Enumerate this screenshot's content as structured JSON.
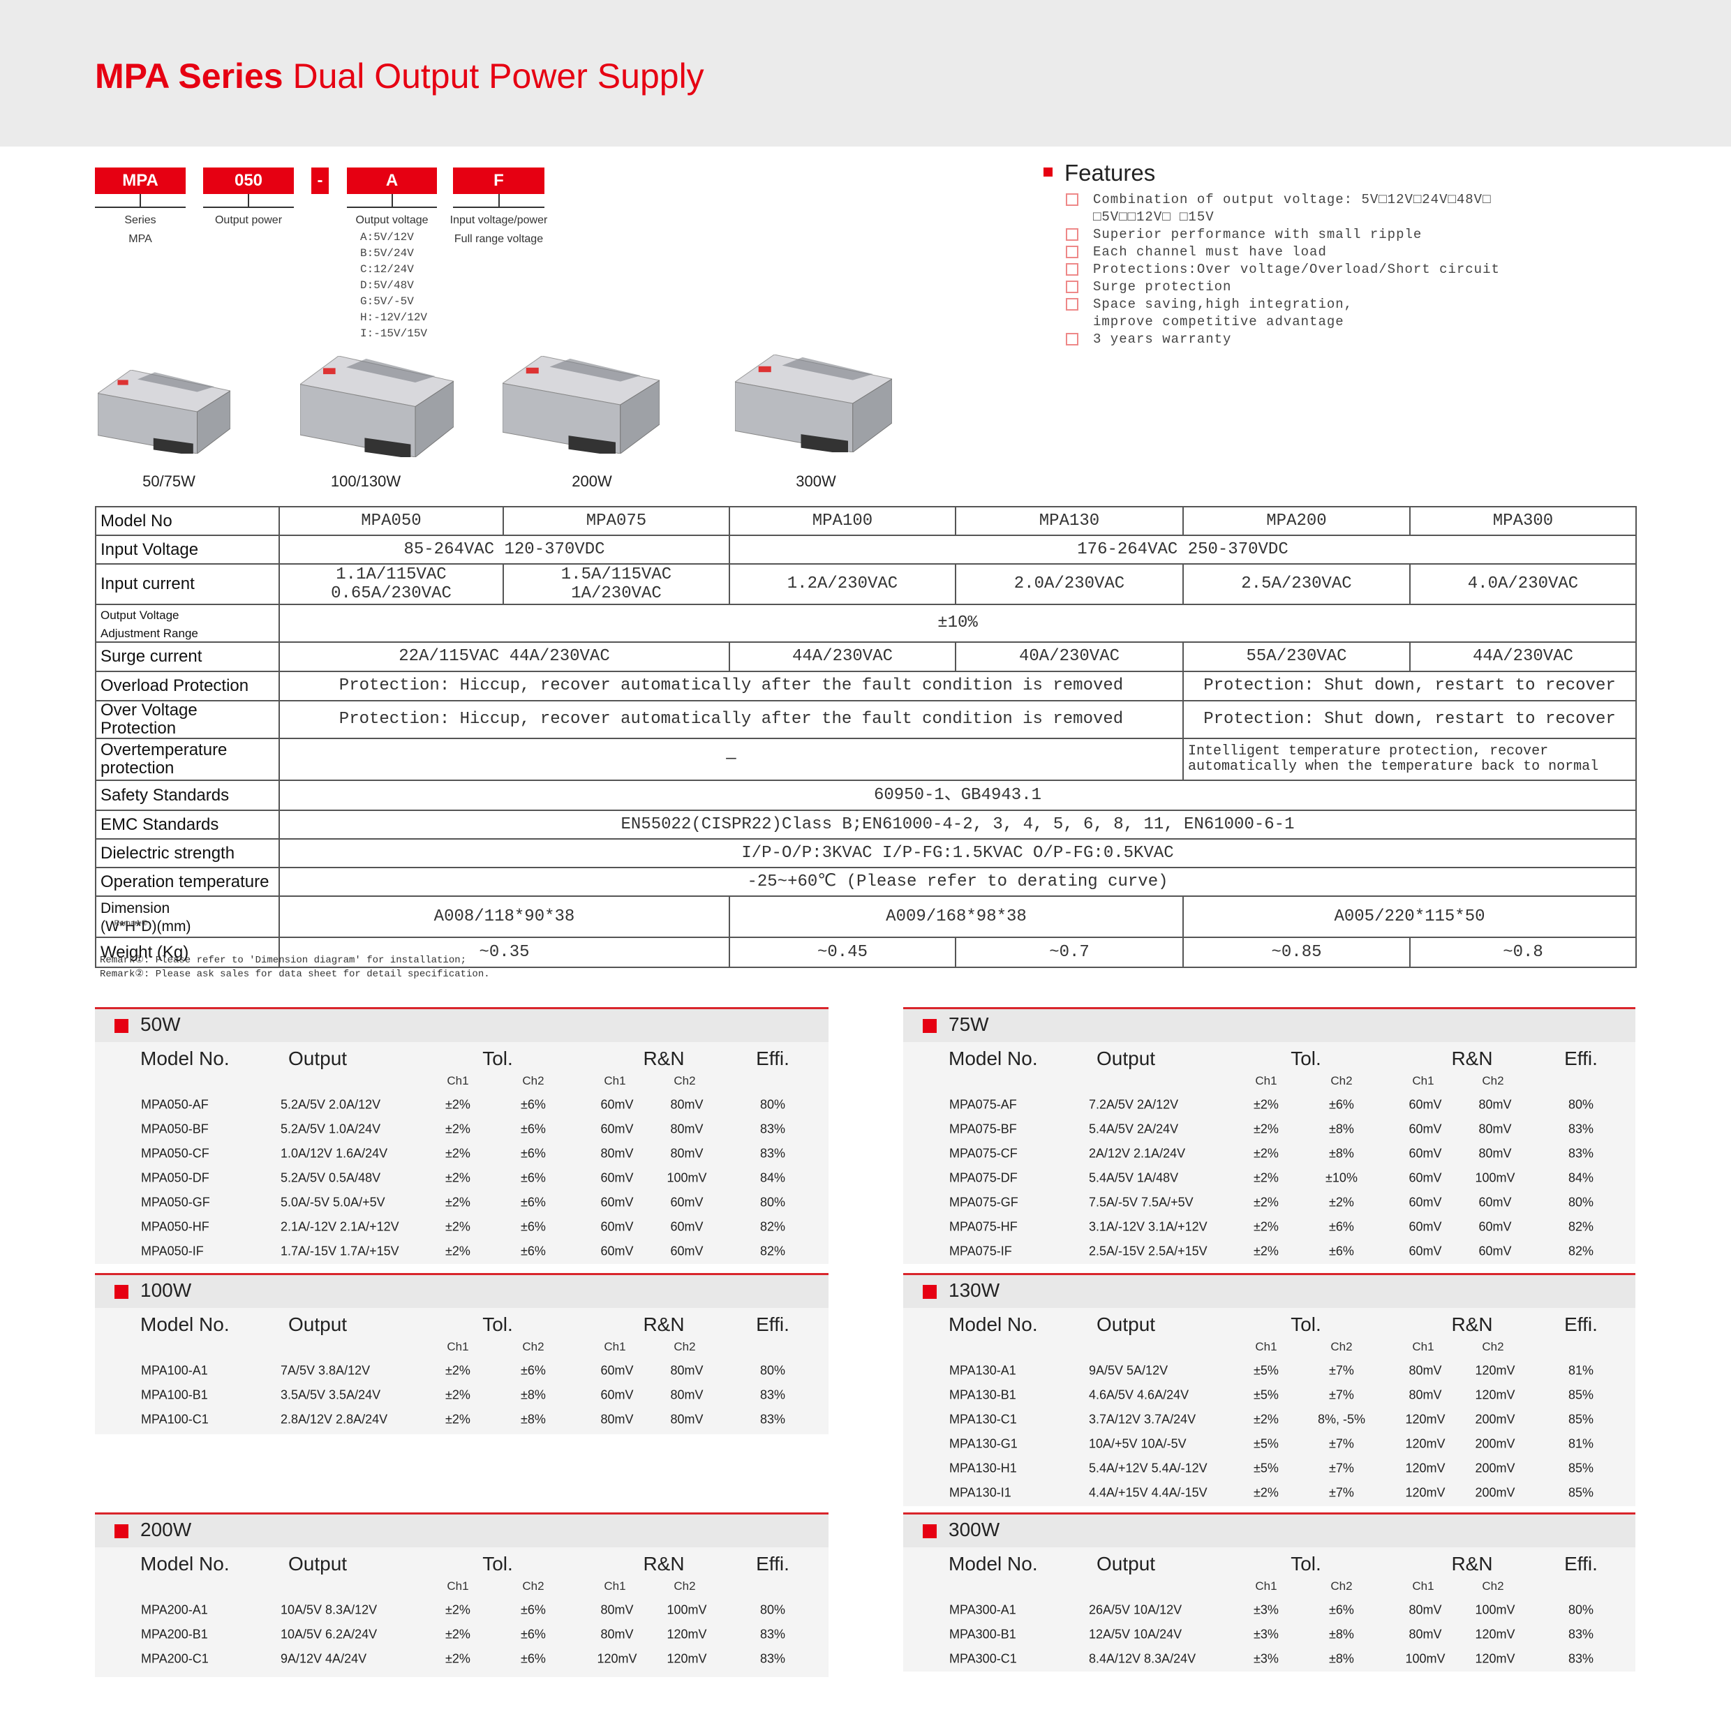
{
  "header": {
    "title_bold": "MPA Series",
    "title_rest": "Dual Output Power Supply"
  },
  "model_code": {
    "parts": [
      {
        "code": "MPA",
        "label": "Series\nMPA"
      },
      {
        "code": "050",
        "label": "Output power"
      },
      {
        "code": "-"
      },
      {
        "code": "A",
        "label": "Output voltage",
        "options": [
          "A:5V/12V",
          "B:5V/24V",
          "C:12/24V",
          "D:5V/48V",
          "G:5V/-5V",
          "H:-12V/12V",
          "I:-15V/15V"
        ]
      },
      {
        "code": "F",
        "label": "Input voltage/power\nFull range voltage"
      }
    ]
  },
  "features": {
    "title": "Features",
    "items": [
      "Combination of output voltage: 5V□12V□24V□48V□\n□5V□□12V□ □15V",
      "Superior performance with small ripple",
      "Each channel must have load",
      "Protections:Over voltage/Overload/Short circuit",
      "Surge protection",
      "Space saving,high integration,\nimprove competitive advantage",
      "3 years warranty"
    ]
  },
  "products": [
    "50/75W",
    "100/130W",
    "200W",
    "300W"
  ],
  "spec_table": {
    "rows": [
      {
        "label": "Model No",
        "cells": [
          "MPA050",
          "MPA075",
          "MPA100",
          "MPA130",
          "MPA200",
          "MPA300"
        ]
      },
      {
        "label": "Input Voltage",
        "cells": [
          "85-264VAC 120-370VDC",
          "176-264VAC 250-370VDC"
        ]
      },
      {
        "label": "Input current",
        "cells": [
          "1.1A/115VAC\n0.65A/230VAC",
          "1.5A/115VAC\n1A/230VAC",
          "1.2A/230VAC",
          "2.0A/230VAC",
          "2.5A/230VAC",
          "4.0A/230VAC"
        ]
      },
      {
        "label": "Output Voltage\nAdjustment Range",
        "cells": [
          "±10%"
        ]
      },
      {
        "label": "Surge current",
        "cells": [
          "22A/115VAC 44A/230VAC",
          "44A/230VAC",
          "40A/230VAC",
          "55A/230VAC",
          "44A/230VAC"
        ]
      },
      {
        "label": "Overload Protection",
        "cells": [
          "Protection: Hiccup, recover automatically after the fault condition is removed",
          "Protection: Shut down, restart to recover"
        ]
      },
      {
        "label": "Over Voltage Protection",
        "cells": [
          "Protection: Hiccup, recover automatically after the fault condition is removed",
          "Protection: Shut down, restart to recover"
        ]
      },
      {
        "label": "Overtemperature protection",
        "cells": [
          "—",
          "Intelligent temperature protection, recover\nautomatically when the temperature back to normal"
        ]
      },
      {
        "label": "Safety Standards",
        "cells": [
          "60950-1、GB4943.1"
        ]
      },
      {
        "label": "EMC Standards",
        "cells": [
          "EN55022(CISPR22)Class B;EN61000-4-2, 3, 4, 5, 6, 8, 11, EN61000-6-1"
        ]
      },
      {
        "label": "Dielectric strength",
        "cells": [
          "I/P-O/P:3KVAC I/P-FG:1.5KVAC O/P-FG:0.5KVAC"
        ]
      },
      {
        "label": "Operation temperature",
        "cells": [
          "-25~+60℃ (Please refer to derating curve)"
        ]
      },
      {
        "label": "Dimension\n(W*H*D)(mm)",
        "remark": "Remark①",
        "cells": [
          "A008/118*90*38",
          "A009/168*98*38",
          "A005/220*115*50"
        ]
      },
      {
        "label": "Weight (Kg)",
        "cells": [
          "~0.35",
          "~0.45",
          "~0.7",
          "~0.85",
          "~0.8"
        ]
      }
    ]
  },
  "remarks": [
    "Remark①: Please refer to 'Dimension diagram' for installation;",
    "Remark②: Please ask sales for data sheet for detail specification."
  ],
  "column_headers": {
    "model": "Model No.",
    "output": "Output",
    "tol": "Tol.",
    "rn": "R&N",
    "effi": "Effi.",
    "channels": [
      "Ch1",
      "Ch2",
      "Ch1",
      "Ch2"
    ]
  },
  "sections": [
    {
      "title": "50W",
      "rows": [
        [
          "MPA050-AF",
          "5.2A/5V 2.0A/12V",
          "±2%",
          "±6%",
          "60mV",
          "80mV",
          "80%"
        ],
        [
          "MPA050-BF",
          "5.2A/5V 1.0A/24V",
          "±2%",
          "±6%",
          "60mV",
          "80mV",
          "83%"
        ],
        [
          "MPA050-CF",
          "1.0A/12V 1.6A/24V",
          "±2%",
          "±6%",
          "80mV",
          "80mV",
          "83%"
        ],
        [
          "MPA050-DF",
          "5.2A/5V 0.5A/48V",
          "±2%",
          "±6%",
          "60mV",
          "100mV",
          "84%"
        ],
        [
          "MPA050-GF",
          "5.0A/-5V 5.0A/+5V",
          "±2%",
          "±6%",
          "60mV",
          "60mV",
          "80%"
        ],
        [
          "MPA050-HF",
          "2.1A/-12V 2.1A/+12V",
          "±2%",
          "±6%",
          "60mV",
          "60mV",
          "82%"
        ],
        [
          "MPA050-IF",
          "1.7A/-15V 1.7A/+15V",
          "±2%",
          "±6%",
          "60mV",
          "60mV",
          "82%"
        ]
      ]
    },
    {
      "title": "75W",
      "rows": [
        [
          "MPA075-AF",
          "7.2A/5V 2A/12V",
          "±2%",
          "±6%",
          "60mV",
          "80mV",
          "80%"
        ],
        [
          "MPA075-BF",
          "5.4A/5V 2A/24V",
          "±2%",
          "±8%",
          "60mV",
          "80mV",
          "83%"
        ],
        [
          "MPA075-CF",
          "2A/12V 2.1A/24V",
          "±2%",
          "±8%",
          "60mV",
          "80mV",
          "83%"
        ],
        [
          "MPA075-DF",
          "5.4A/5V 1A/48V",
          "±2%",
          "±10%",
          "60mV",
          "100mV",
          "84%"
        ],
        [
          "MPA075-GF",
          "7.5A/-5V 7.5A/+5V",
          "±2%",
          "±2%",
          "60mV",
          "60mV",
          "80%"
        ],
        [
          "MPA075-HF",
          "3.1A/-12V 3.1A/+12V",
          "±2%",
          "±6%",
          "60mV",
          "60mV",
          "82%"
        ],
        [
          "MPA075-IF",
          "2.5A/-15V 2.5A/+15V",
          "±2%",
          "±6%",
          "60mV",
          "60mV",
          "82%"
        ]
      ]
    },
    {
      "title": "100W",
      "rows": [
        [
          "MPA100-A1",
          "7A/5V 3.8A/12V",
          "±2%",
          "±6%",
          "60mV",
          "80mV",
          "80%"
        ],
        [
          "MPA100-B1",
          "3.5A/5V 3.5A/24V",
          "±2%",
          "±8%",
          "60mV",
          "80mV",
          "83%"
        ],
        [
          "MPA100-C1",
          "2.8A/12V 2.8A/24V",
          "±2%",
          "±8%",
          "80mV",
          "80mV",
          "83%"
        ]
      ]
    },
    {
      "title": "130W",
      "rows": [
        [
          "MPA130-A1",
          "9A/5V 5A/12V",
          "±5%",
          "±7%",
          "80mV",
          "120mV",
          "81%"
        ],
        [
          "MPA130-B1",
          "4.6A/5V 4.6A/24V",
          "±5%",
          "±7%",
          "80mV",
          "120mV",
          "85%"
        ],
        [
          "MPA130-C1",
          "3.7A/12V 3.7A/24V",
          "±2%",
          "8%, -5%",
          "120mV",
          "200mV",
          "85%"
        ],
        [
          "MPA130-G1",
          "10A/+5V 10A/-5V",
          "±5%",
          "±7%",
          "120mV",
          "200mV",
          "81%"
        ],
        [
          "MPA130-H1",
          "5.4A/+12V 5.4A/-12V",
          "±5%",
          "±7%",
          "120mV",
          "200mV",
          "85%"
        ],
        [
          "MPA130-I1",
          "4.4A/+15V 4.4A/-15V",
          "±2%",
          "±7%",
          "120mV",
          "200mV",
          "85%"
        ]
      ]
    },
    {
      "title": "200W",
      "rows": [
        [
          "MPA200-A1",
          "10A/5V 8.3A/12V",
          "±2%",
          "±6%",
          "80mV",
          "100mV",
          "80%"
        ],
        [
          "MPA200-B1",
          "10A/5V 6.2A/24V",
          "±2%",
          "±6%",
          "80mV",
          "120mV",
          "83%"
        ],
        [
          "MPA200-C1",
          "9A/12V 4A/24V",
          "±2%",
          "±6%",
          "120mV",
          "120mV",
          "83%"
        ]
      ]
    },
    {
      "title": "300W",
      "rows": [
        [
          "MPA300-A1",
          "26A/5V 10A/12V",
          "±3%",
          "±6%",
          "80mV",
          "100mV",
          "80%"
        ],
        [
          "MPA300-B1",
          "12A/5V 10A/24V",
          "±3%",
          "±8%",
          "80mV",
          "120mV",
          "83%"
        ],
        [
          "MPA300-C1",
          "8.4A/12V 8.3A/24V",
          "±3%",
          "±8%",
          "100mV",
          "120mV",
          "83%"
        ]
      ]
    }
  ]
}
